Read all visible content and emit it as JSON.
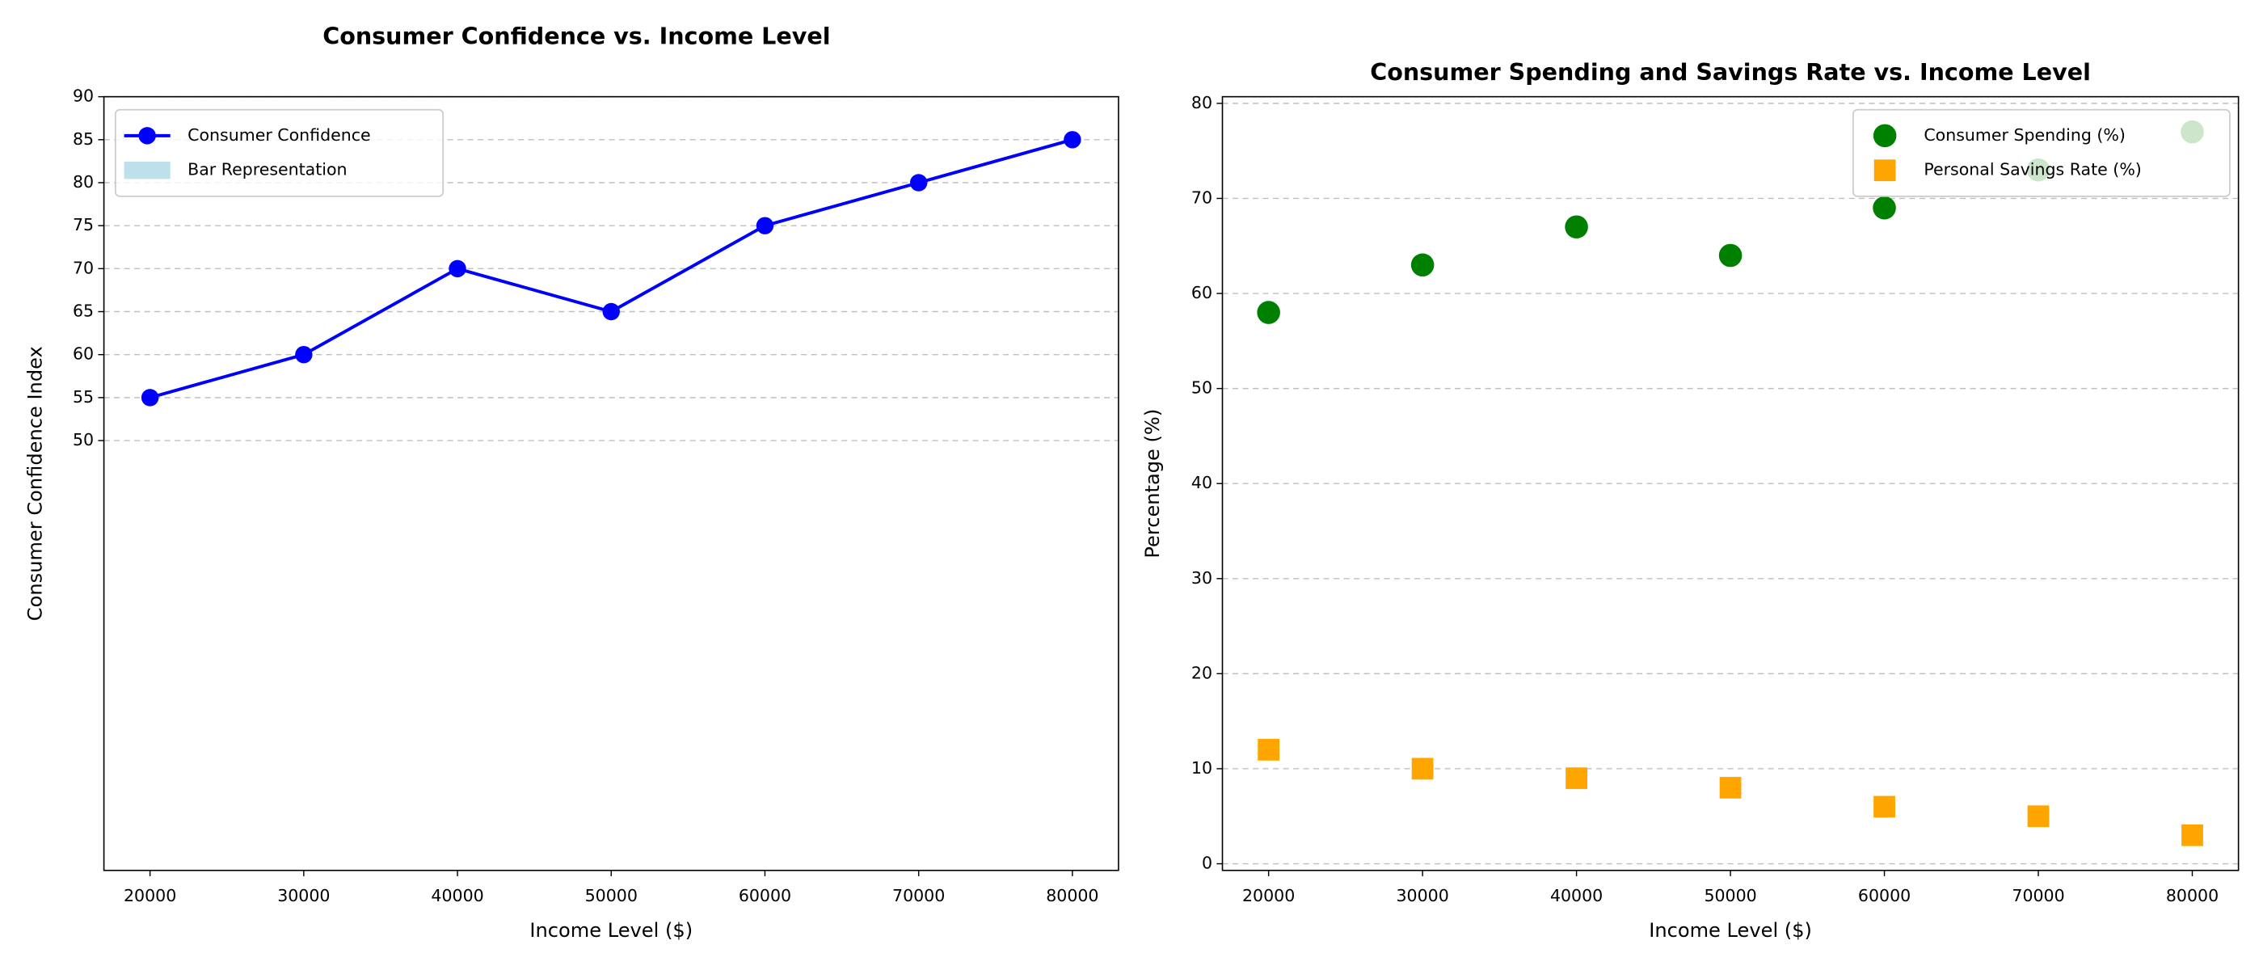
{
  "chart_data": [
    {
      "type": "line",
      "title": "Consumer Confidence vs. Income Level",
      "x_label": "Income Level ($)",
      "y_label": "Consumer Confidence Index",
      "x": [
        20000,
        30000,
        40000,
        50000,
        60000,
        70000,
        80000
      ],
      "series": [
        {
          "name": "Consumer Confidence",
          "color": "#0000ff",
          "values": [
            55,
            60,
            70,
            65,
            75,
            80,
            85
          ]
        }
      ],
      "legend_patches": [
        {
          "name": "Bar Representation",
          "color": "#add8e6"
        }
      ],
      "xlim": [
        17000,
        83000
      ],
      "xticks": [
        20000,
        30000,
        40000,
        50000,
        60000,
        70000,
        80000
      ],
      "ylim": [
        0,
        90
      ],
      "yticks": [
        50,
        55,
        60,
        65,
        70,
        75,
        80,
        85,
        90
      ],
      "grid": true,
      "legend": "upper left"
    },
    {
      "type": "scatter",
      "title": "Consumer Spending and Savings Rate vs. Income Level",
      "x_label": "Income Level ($)",
      "y_label": "Percentage (%)",
      "x": [
        20000,
        30000,
        40000,
        50000,
        60000,
        70000,
        80000
      ],
      "series": [
        {
          "name": "Consumer Spending (%)",
          "color": "#008000",
          "marker": "circle",
          "values": [
            58,
            63,
            67,
            64,
            69,
            73,
            77
          ]
        },
        {
          "name": "Personal Savings Rate (%)",
          "color": "#ffa500",
          "marker": "square",
          "values": [
            12,
            10,
            9,
            8,
            6,
            5,
            3
          ]
        }
      ],
      "xlim": [
        17000,
        83000
      ],
      "xticks": [
        20000,
        30000,
        40000,
        50000,
        60000,
        70000,
        80000
      ],
      "ylim": [
        -0.7,
        80.7
      ],
      "yticks": [
        0,
        10,
        20,
        30,
        40,
        50,
        60,
        70,
        80
      ],
      "grid": true,
      "legend": "upper right"
    }
  ]
}
